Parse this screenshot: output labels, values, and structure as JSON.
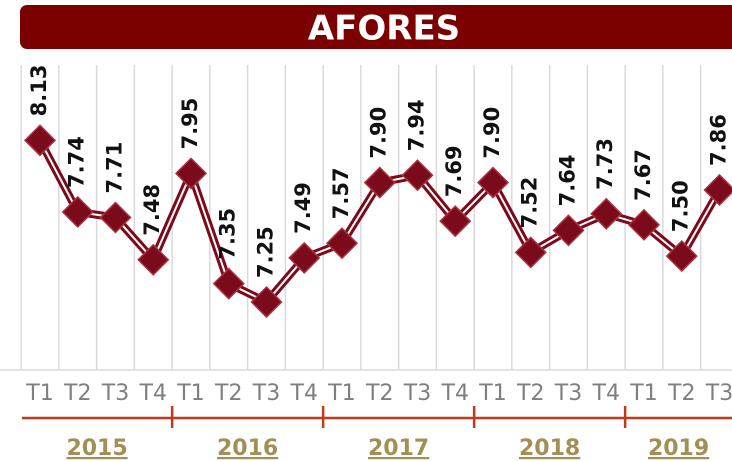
{
  "chart_data": {
    "type": "line",
    "title": "AFORES",
    "categories": [
      "T1",
      "T2",
      "T3",
      "T4",
      "T1",
      "T2",
      "T3",
      "T4",
      "T1",
      "T2",
      "T3",
      "T4",
      "T1",
      "T2",
      "T3",
      "T4",
      "T1",
      "T2",
      "T3"
    ],
    "groups": [
      "2015",
      "2016",
      "2017",
      "2018",
      "2019"
    ],
    "series": [
      {
        "name": "AFORES",
        "color": "#7b0a1a",
        "values": [
          8.13,
          7.74,
          7.71,
          7.48,
          7.95,
          7.35,
          7.25,
          7.49,
          7.57,
          7.9,
          7.94,
          7.69,
          7.9,
          7.52,
          7.64,
          7.73,
          7.67,
          7.5,
          7.86
        ],
        "value_labels": [
          "8.13",
          "7.74",
          "7.71",
          "7.48",
          "7.95",
          "7.35",
          "7.25",
          "7.49",
          "7.57",
          "7.90",
          "7.94",
          "7.69",
          "7.90",
          "7.52",
          "7.64",
          "7.73",
          "7.67",
          "7.50",
          "7.86"
        ]
      }
    ],
    "ylim": [
      6.88,
      8.54
    ],
    "grid": true
  }
}
